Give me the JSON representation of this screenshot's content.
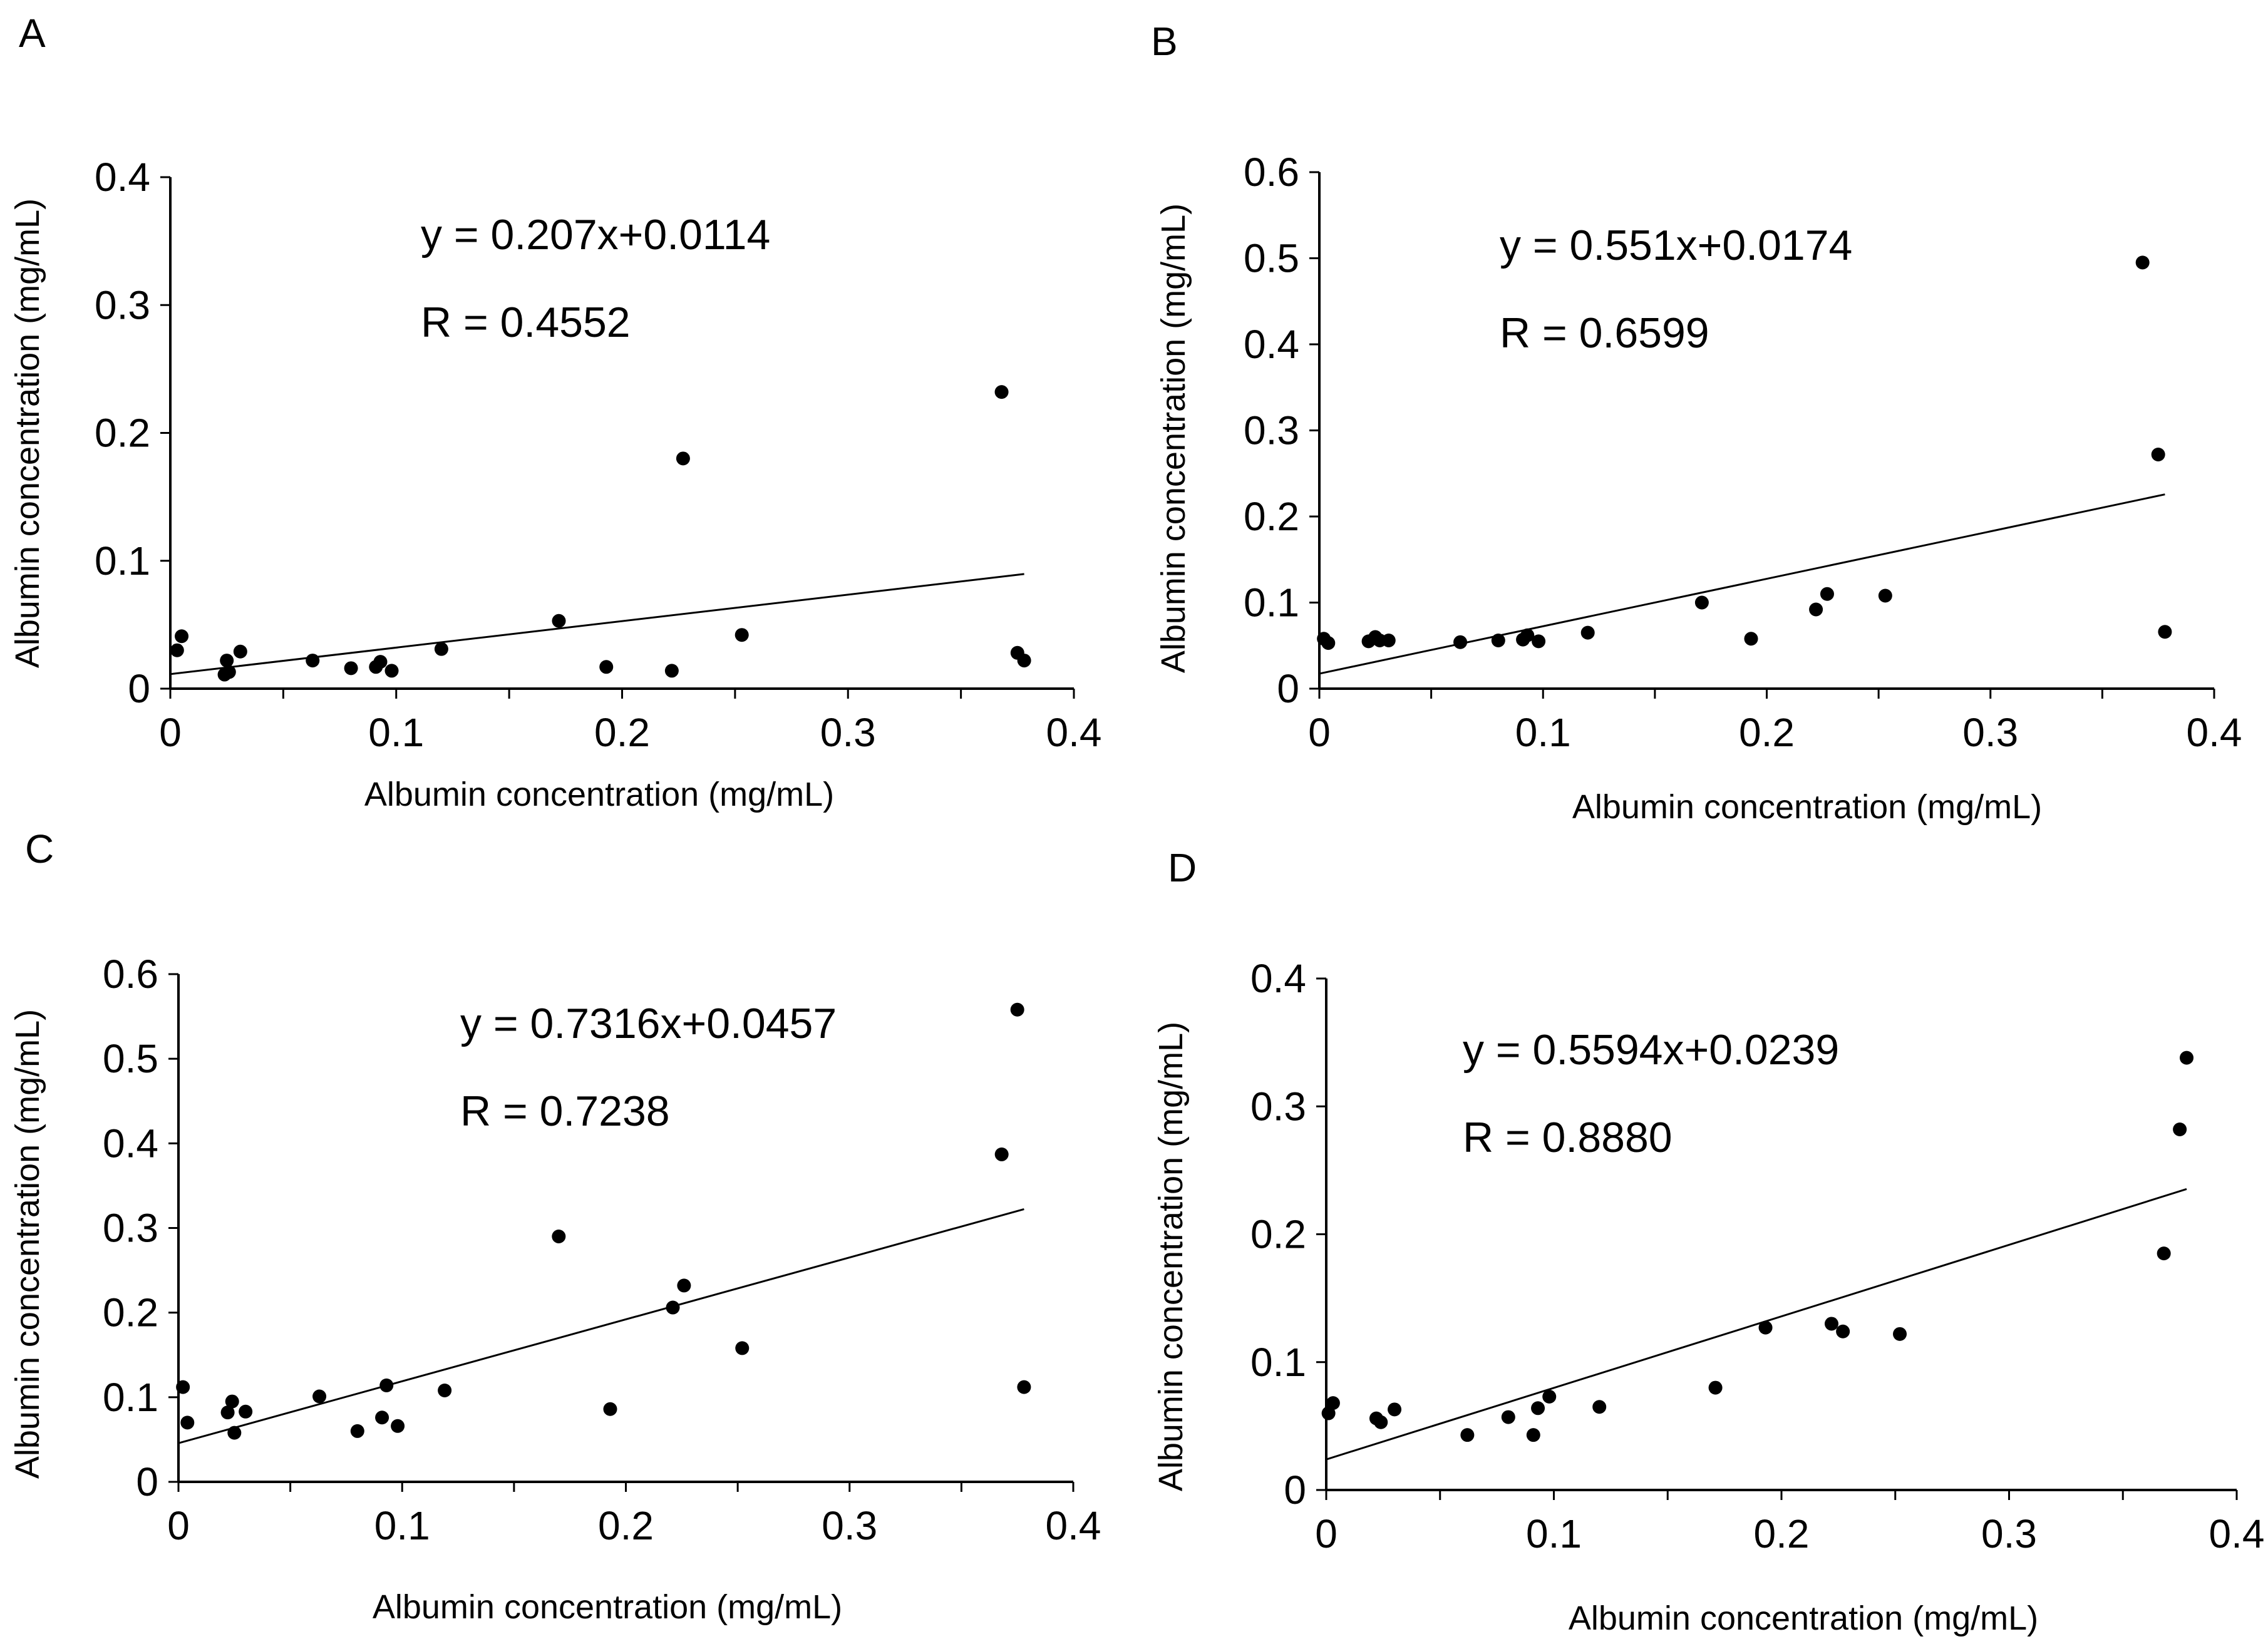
{
  "chart_data": [
    {
      "panel": "A",
      "type": "scatter",
      "xlabel": "Albumin concentration (mg/mL)",
      "ylabel": "Albumin concentration (mg/mL)",
      "xlim": [
        0,
        0.4
      ],
      "ylim": [
        0,
        0.4
      ],
      "xticks": [
        0,
        0.1,
        0.2,
        0.3,
        0.4
      ],
      "yticks": [
        0,
        0.1,
        0.2,
        0.3,
        0.4
      ],
      "x_tick_labels": [
        "0",
        "0.1",
        "0.2",
        "0.3",
        "0.4"
      ],
      "y_tick_labels": [
        "0",
        "0.1",
        "0.2",
        "0.3",
        "0.4"
      ],
      "equation": "y = 0.207x+0.0114",
      "r_text": "R = 0.4552",
      "fit": {
        "slope": 0.207,
        "intercept": 0.0114,
        "x_range": [
          0,
          0.378
        ]
      },
      "points": [
        [
          0.003,
          0.03
        ],
        [
          0.005,
          0.041
        ],
        [
          0.024,
          0.011
        ],
        [
          0.025,
          0.022
        ],
        [
          0.026,
          0.013
        ],
        [
          0.031,
          0.029
        ],
        [
          0.063,
          0.022
        ],
        [
          0.08,
          0.016
        ],
        [
          0.091,
          0.017
        ],
        [
          0.093,
          0.021
        ],
        [
          0.098,
          0.014
        ],
        [
          0.12,
          0.031
        ],
        [
          0.172,
          0.053
        ],
        [
          0.193,
          0.017
        ],
        [
          0.222,
          0.014
        ],
        [
          0.227,
          0.18
        ],
        [
          0.253,
          0.042
        ],
        [
          0.368,
          0.232
        ],
        [
          0.375,
          0.028
        ],
        [
          0.378,
          0.022
        ]
      ]
    },
    {
      "panel": "B",
      "type": "scatter",
      "xlabel": "Albumin concentration (mg/mL)",
      "ylabel": "Albumin concentration (mg/mL)",
      "xlim": [
        0,
        0.4
      ],
      "ylim": [
        0,
        0.6
      ],
      "xticks": [
        0,
        0.1,
        0.2,
        0.3,
        0.4
      ],
      "yticks": [
        0,
        0.1,
        0.2,
        0.3,
        0.4,
        0.5,
        0.6
      ],
      "x_tick_labels": [
        "0",
        "0.1",
        "0.2",
        "0.3",
        "0.4"
      ],
      "y_tick_labels": [
        "0",
        "0.1",
        "0.2",
        "0.3",
        "0.4",
        "0.5",
        "0.6"
      ],
      "equation": "y = 0.551x+0.0174",
      "r_text": "R = 0.6599",
      "fit": {
        "slope": 0.551,
        "intercept": 0.0174,
        "x_range": [
          0,
          0.378
        ]
      },
      "points": [
        [
          0.002,
          0.058
        ],
        [
          0.004,
          0.053
        ],
        [
          0.022,
          0.055
        ],
        [
          0.025,
          0.06
        ],
        [
          0.027,
          0.056
        ],
        [
          0.031,
          0.056
        ],
        [
          0.063,
          0.054
        ],
        [
          0.08,
          0.056
        ],
        [
          0.091,
          0.057
        ],
        [
          0.093,
          0.062
        ],
        [
          0.098,
          0.055
        ],
        [
          0.12,
          0.065
        ],
        [
          0.171,
          0.1
        ],
        [
          0.193,
          0.058
        ],
        [
          0.222,
          0.092
        ],
        [
          0.227,
          0.11
        ],
        [
          0.253,
          0.108
        ],
        [
          0.368,
          0.495
        ],
        [
          0.375,
          0.272
        ],
        [
          0.378,
          0.066
        ]
      ]
    },
    {
      "panel": "C",
      "type": "scatter",
      "xlabel": "Albumin concentration (mg/mL)",
      "ylabel": "Albumin concentration (mg/mL)",
      "xlim": [
        0,
        0.4
      ],
      "ylim": [
        0,
        0.6
      ],
      "xticks": [
        0,
        0.1,
        0.2,
        0.3,
        0.4
      ],
      "yticks": [
        0,
        0.1,
        0.2,
        0.3,
        0.4,
        0.5,
        0.6
      ],
      "x_tick_labels": [
        "0",
        "0.1",
        "0.2",
        "0.3",
        "0.4"
      ],
      "y_tick_labels": [
        "0",
        "0.1",
        "0.2",
        "0.3",
        "0.4",
        "0.5",
        "0.6"
      ],
      "equation": "y = 0.7316x+0.0457",
      "r_text": "R = 0.7238",
      "fit": {
        "slope": 0.7316,
        "intercept": 0.0457,
        "x_range": [
          0,
          0.378
        ]
      },
      "points": [
        [
          0.002,
          0.112
        ],
        [
          0.004,
          0.07
        ],
        [
          0.022,
          0.082
        ],
        [
          0.024,
          0.095
        ],
        [
          0.025,
          0.058
        ],
        [
          0.03,
          0.083
        ],
        [
          0.063,
          0.101
        ],
        [
          0.08,
          0.06
        ],
        [
          0.091,
          0.076
        ],
        [
          0.093,
          0.114
        ],
        [
          0.098,
          0.066
        ],
        [
          0.119,
          0.108
        ],
        [
          0.17,
          0.29
        ],
        [
          0.193,
          0.086
        ],
        [
          0.221,
          0.206
        ],
        [
          0.226,
          0.232
        ],
        [
          0.252,
          0.158
        ],
        [
          0.368,
          0.387
        ],
        [
          0.375,
          0.558
        ],
        [
          0.378,
          0.112
        ]
      ]
    },
    {
      "panel": "D",
      "type": "scatter",
      "xlabel": "Albumin concentration (mg/mL)",
      "ylabel": "Albumin concentration (mg/mL)",
      "xlim": [
        0,
        0.4
      ],
      "ylim": [
        0,
        0.4
      ],
      "xticks": [
        0,
        0.1,
        0.2,
        0.3,
        0.4
      ],
      "yticks": [
        0,
        0.1,
        0.2,
        0.3,
        0.4
      ],
      "x_tick_labels": [
        "0",
        "0.1",
        "0.2",
        "0.3",
        "0.4"
      ],
      "y_tick_labels": [
        "0",
        "0.1",
        "0.2",
        "0.3",
        "0.4"
      ],
      "equation": "y = 0.5594x+0.0239",
      "r_text": "R = 0.8880",
      "fit": {
        "slope": 0.5594,
        "intercept": 0.0239,
        "x_range": [
          0,
          0.378
        ]
      },
      "points": [
        [
          0.001,
          0.06
        ],
        [
          0.003,
          0.068
        ],
        [
          0.022,
          0.056
        ],
        [
          0.024,
          0.053
        ],
        [
          0.03,
          0.063
        ],
        [
          0.062,
          0.043
        ],
        [
          0.08,
          0.057
        ],
        [
          0.091,
          0.043
        ],
        [
          0.093,
          0.064
        ],
        [
          0.098,
          0.073
        ],
        [
          0.12,
          0.065
        ],
        [
          0.171,
          0.08
        ],
        [
          0.193,
          0.127
        ],
        [
          0.222,
          0.13
        ],
        [
          0.227,
          0.124
        ],
        [
          0.252,
          0.122
        ],
        [
          0.368,
          0.185
        ],
        [
          0.375,
          0.282
        ],
        [
          0.378,
          0.338
        ]
      ]
    }
  ]
}
